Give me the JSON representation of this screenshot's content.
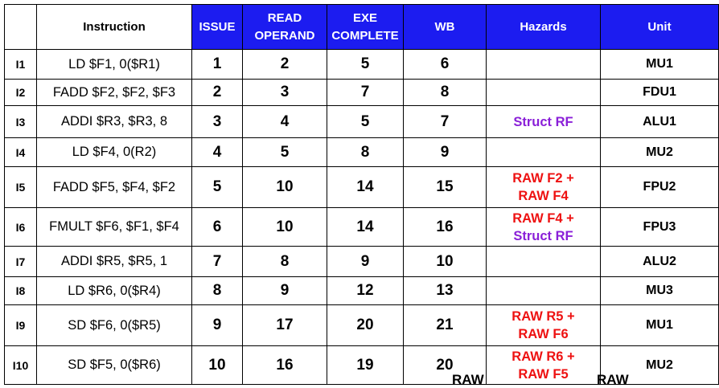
{
  "headers": {
    "blank": "",
    "instruction": "Instruction",
    "issue": "ISSUE",
    "read_operand": [
      "READ",
      "OPERAND"
    ],
    "exe_complete": [
      "EXE",
      "COMPLETE"
    ],
    "wb": "WB",
    "hazards": "Hazards",
    "unit": "Unit"
  },
  "rows": [
    {
      "id": "I1",
      "instr": "LD $F1, 0($R1)",
      "issue": "1",
      "read": "2",
      "exe": "5",
      "wb": "6",
      "hazards": [],
      "unit": "MU1"
    },
    {
      "id": "I2",
      "instr": "FADD $F2, $F2, $F3",
      "issue": "2",
      "read": "3",
      "exe": "7",
      "wb": "8",
      "hazards": [],
      "unit": "FDU1"
    },
    {
      "id": "I3",
      "instr": "ADDI $R3, $R3, 8",
      "issue": "3",
      "read": "4",
      "exe": "5",
      "wb": "7",
      "hazards": [
        {
          "text": "Struct RF",
          "kind": "struct"
        }
      ],
      "unit": "ALU1"
    },
    {
      "id": "I4",
      "instr": "LD $F4, 0(R2)",
      "issue": "4",
      "read": "5",
      "exe": "8",
      "wb": "9",
      "hazards": [],
      "unit": "MU2"
    },
    {
      "id": "I5",
      "instr": "FADD $F5, $F4, $F2",
      "issue": "5",
      "read": "10",
      "exe": "14",
      "wb": "15",
      "hazards": [
        {
          "text": "RAW F2 +",
          "kind": "raw"
        },
        {
          "text": "RAW F4",
          "kind": "raw"
        }
      ],
      "unit": "FPU2"
    },
    {
      "id": "I6",
      "instr": "FMULT $F6, $F1, $F4",
      "issue": "6",
      "read": "10",
      "exe": "14",
      "wb": "16",
      "hazards": [
        {
          "text": "RAW F4 +",
          "kind": "raw"
        },
        {
          "text": "Struct RF",
          "kind": "struct"
        }
      ],
      "unit": "FPU3"
    },
    {
      "id": "I7",
      "instr": "ADDI $R5, $R5, 1",
      "issue": "7",
      "read": "8",
      "exe": "9",
      "wb": "10",
      "hazards": [],
      "unit": "ALU2"
    },
    {
      "id": "I8",
      "instr": "LD $R6, 0($R4)",
      "issue": "8",
      "read": "9",
      "exe": "12",
      "wb": "13",
      "hazards": [],
      "unit": "MU3"
    },
    {
      "id": "I9",
      "instr": "SD $F6, 0($R5)",
      "issue": "9",
      "read": "17",
      "exe": "20",
      "wb": "21",
      "hazards": [
        {
          "text": "RAW R5 +",
          "kind": "raw"
        },
        {
          "text": "RAW F6",
          "kind": "raw"
        }
      ],
      "unit": "MU1"
    },
    {
      "id": "I10",
      "instr": "SD $F5, 0($R6)",
      "issue": "10",
      "read": "16",
      "exe": "19",
      "wb": "20",
      "hazards": [
        {
          "text": "RAW R6 +",
          "kind": "raw"
        },
        {
          "text": "RAW F5",
          "kind": "raw"
        }
      ],
      "unit": "MU2"
    }
  ],
  "colors": {
    "header_bg": "#1c1cf0",
    "raw": "#ee1111",
    "struct": "#8a1fd8"
  },
  "footer_cut": [
    "RAW",
    "RAW"
  ]
}
